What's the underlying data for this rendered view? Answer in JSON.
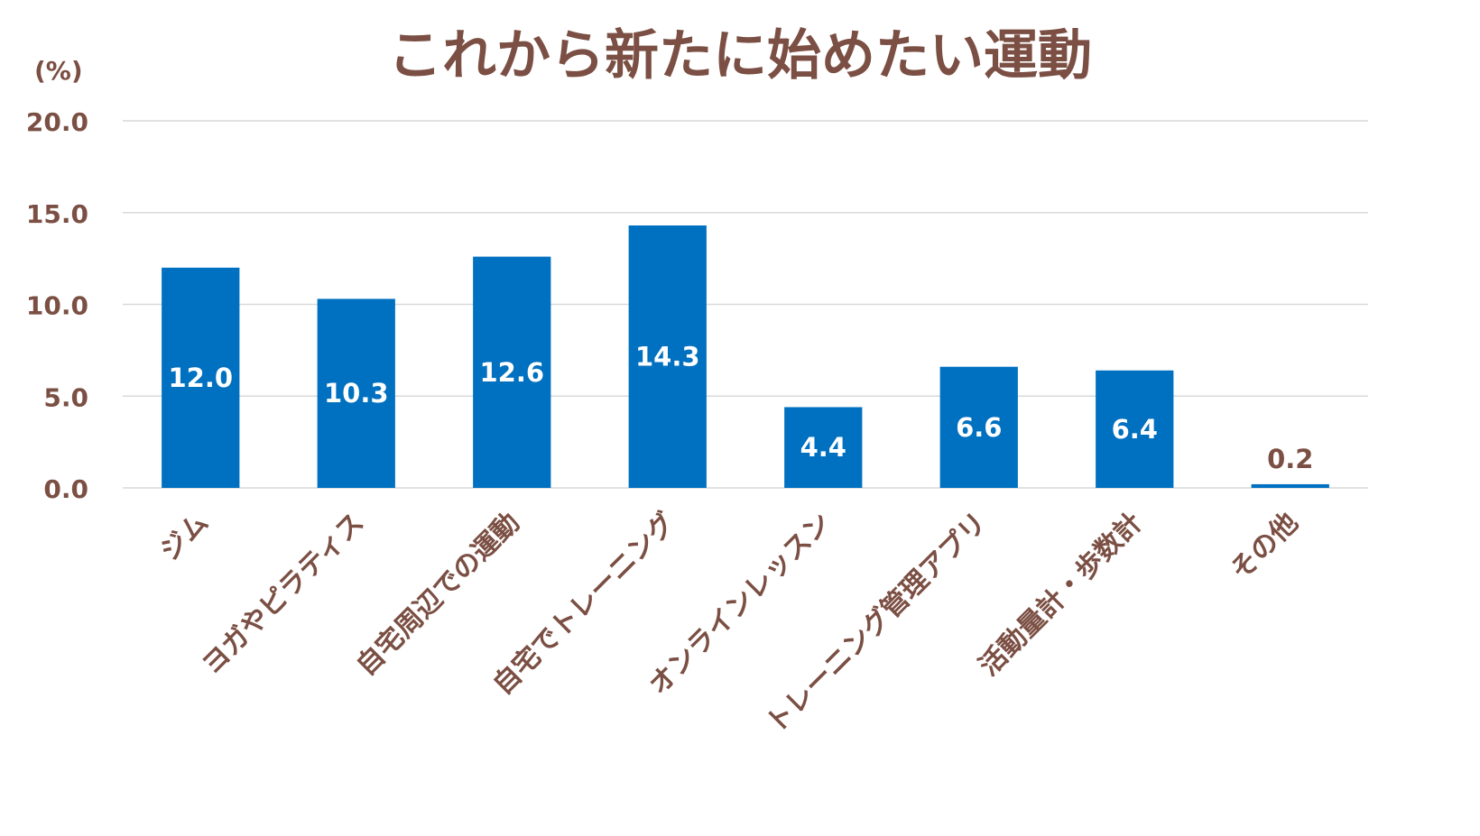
{
  "chart_data": {
    "type": "bar",
    "title": "これから新たに始めたい運動",
    "unit_label": "(%)",
    "categories": [
      "ジム",
      "ヨガやピラティス",
      "自宅周辺での運動",
      "自宅でトレーニング",
      "オンラインレッスン",
      "トレーニング管理アプリ",
      "活動量計・歩数計",
      "その他"
    ],
    "values": [
      12.0,
      10.3,
      12.6,
      14.3,
      4.4,
      6.6,
      6.4,
      0.2
    ],
    "value_labels": [
      "12.0",
      "10.3",
      "12.6",
      "14.3",
      "4.4",
      "6.6",
      "6.4",
      "0.2"
    ],
    "y_ticks": [
      0,
      5,
      10,
      15,
      20
    ],
    "y_tick_labels": [
      "0.0",
      "5.0",
      "10.0",
      "15.0",
      "20.0"
    ],
    "ylim": [
      0,
      20
    ],
    "grid": true,
    "legend": "none",
    "colors": {
      "bar": "#0070C0",
      "text": "#7B4F43",
      "grid": "#D9D9D9",
      "inner_label": "#FFFFFF"
    }
  }
}
